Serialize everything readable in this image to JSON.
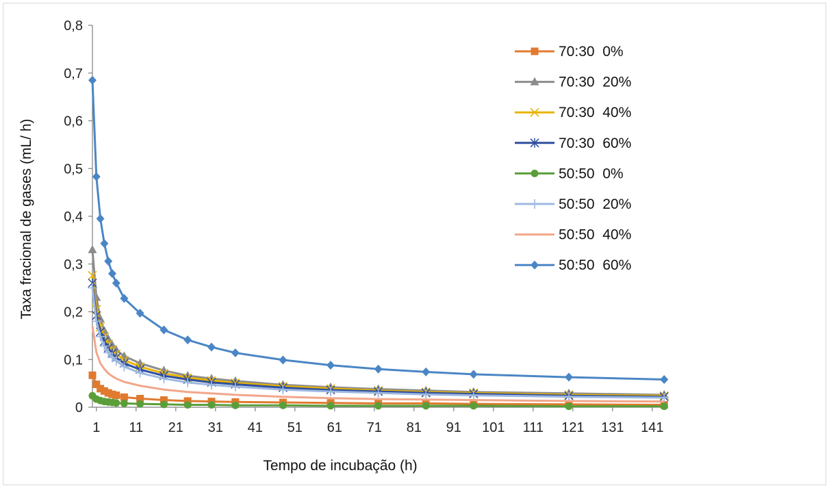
{
  "chart_data": {
    "type": "line",
    "title": "",
    "xlabel": "Tempo de incubação (h)",
    "ylabel": "Taxa fracional  de  gases (mL/ h)",
    "xlim": [
      0,
      145
    ],
    "ylim": [
      0,
      0.8
    ],
    "x_ticks": [
      1,
      11,
      21,
      31,
      41,
      51,
      61,
      71,
      81,
      91,
      101,
      111,
      121,
      131,
      141
    ],
    "y_ticks": [
      0,
      0.1,
      0.2,
      0.3,
      0.4,
      0.5,
      0.6,
      0.7,
      0.8
    ],
    "y_tick_labels": [
      "0",
      "0,1",
      "0,2",
      "0,3",
      "0,4",
      "0,5",
      "0,6",
      "0,7",
      "0,8"
    ],
    "grid": false,
    "legend_position": "top-right",
    "x": [
      0,
      1,
      2,
      3,
      4,
      5,
      6,
      8,
      12,
      18,
      24,
      30,
      36,
      48,
      60,
      72,
      84,
      96,
      120,
      144
    ],
    "series": [
      {
        "name": "70:30  0%",
        "color": "#e07a2e",
        "marker": "square",
        "values": [
          0.067,
          0.048,
          0.039,
          0.034,
          0.03,
          0.027,
          0.025,
          0.021,
          0.018,
          0.015,
          0.013,
          0.012,
          0.011,
          0.01,
          0.009,
          0.008,
          0.008,
          0.007,
          0.006,
          0.005
        ]
      },
      {
        "name": "70:30  20%",
        "color": "#8c8c8c",
        "marker": "triangle",
        "values": [
          0.33,
          0.23,
          0.185,
          0.16,
          0.143,
          0.13,
          0.12,
          0.107,
          0.092,
          0.077,
          0.066,
          0.06,
          0.055,
          0.047,
          0.042,
          0.038,
          0.035,
          0.032,
          0.029,
          0.026
        ]
      },
      {
        "name": "70:30  40%",
        "color": "#e8b400",
        "marker": "x",
        "values": [
          0.276,
          0.205,
          0.168,
          0.148,
          0.133,
          0.121,
          0.112,
          0.099,
          0.085,
          0.071,
          0.062,
          0.056,
          0.051,
          0.044,
          0.039,
          0.035,
          0.032,
          0.03,
          0.026,
          0.024
        ]
      },
      {
        "name": "70:30  60%",
        "color": "#2f4f9e",
        "marker": "asterisk",
        "values": [
          0.26,
          0.192,
          0.158,
          0.138,
          0.124,
          0.113,
          0.104,
          0.092,
          0.079,
          0.066,
          0.058,
          0.052,
          0.048,
          0.041,
          0.036,
          0.033,
          0.03,
          0.028,
          0.024,
          0.022
        ]
      },
      {
        "name": "50:50  0%",
        "color": "#5a9e3a",
        "marker": "circle",
        "values": [
          0.024,
          0.017,
          0.014,
          0.012,
          0.011,
          0.01,
          0.009,
          0.008,
          0.007,
          0.006,
          0.005,
          0.005,
          0.004,
          0.004,
          0.003,
          0.003,
          0.003,
          0.003,
          0.002,
          0.002
        ]
      },
      {
        "name": "50:50  20%",
        "color": "#9db8e0",
        "marker": "plus",
        "values": [
          0.25,
          0.18,
          0.148,
          0.128,
          0.114,
          0.104,
          0.097,
          0.085,
          0.072,
          0.06,
          0.052,
          0.047,
          0.043,
          0.037,
          0.033,
          0.03,
          0.027,
          0.025,
          0.022,
          0.02
        ]
      },
      {
        "name": "50:50  40%",
        "color": "#f2a68a",
        "marker": "none",
        "values": [
          0.17,
          0.115,
          0.092,
          0.08,
          0.071,
          0.065,
          0.06,
          0.053,
          0.045,
          0.037,
          0.032,
          0.029,
          0.026,
          0.022,
          0.019,
          0.017,
          0.016,
          0.015,
          0.013,
          0.012
        ]
      },
      {
        "name": "50:50  60%",
        "color": "#4a86c5",
        "marker": "diamond",
        "values": [
          0.685,
          0.483,
          0.395,
          0.343,
          0.306,
          0.28,
          0.26,
          0.228,
          0.197,
          0.162,
          0.141,
          0.126,
          0.114,
          0.099,
          0.088,
          0.08,
          0.074,
          0.069,
          0.063,
          0.058
        ]
      }
    ]
  }
}
